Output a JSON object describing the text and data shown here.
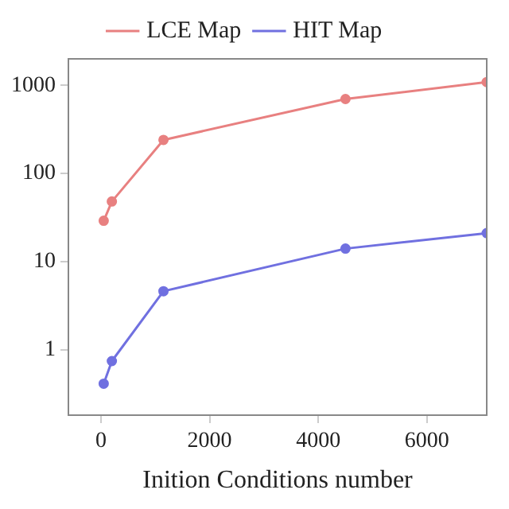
{
  "chart_data": {
    "type": "line",
    "xlabel": "Inition Conditions number",
    "log": "y",
    "xlim": [
      -600,
      7100
    ],
    "xticks": [
      0,
      2000,
      4000,
      6000
    ],
    "ylim": [
      0.18,
      2000
    ],
    "yticks": [
      1,
      10,
      100,
      1000
    ],
    "grid": false,
    "legend": "top",
    "marker": "circle",
    "line_style": "solid",
    "series": [
      {
        "name": "LCE Map",
        "color": "#e88080",
        "x": [
          50,
          200,
          1150,
          4500,
          7100
        ],
        "values": [
          29,
          48,
          240,
          700,
          1090
        ]
      },
      {
        "name": "HIT Map",
        "color": "#7070e0",
        "x": [
          50,
          200,
          1150,
          4500,
          7100
        ],
        "values": [
          0.41,
          0.74,
          4.6,
          14,
          21
        ]
      }
    ]
  }
}
